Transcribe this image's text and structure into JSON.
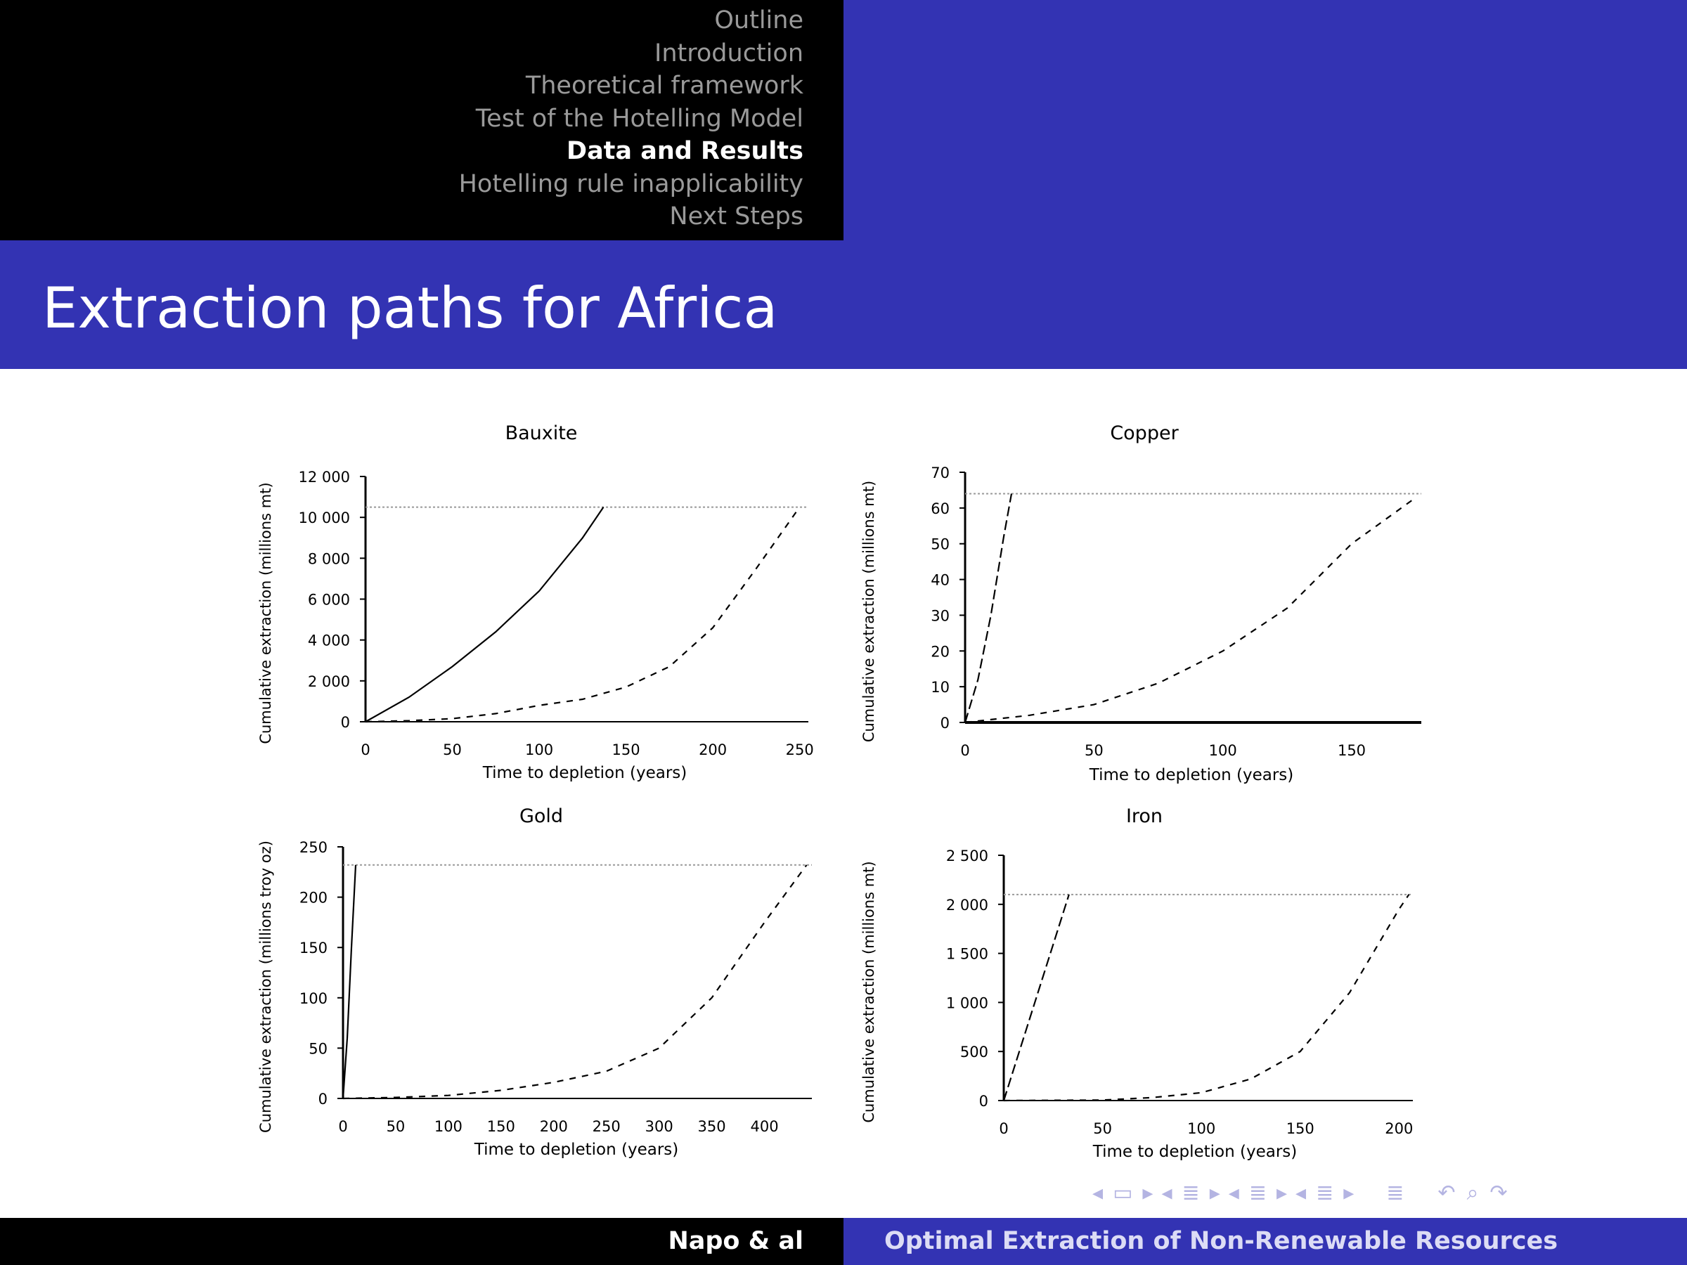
{
  "header": {
    "nav_items": [
      {
        "label": "Outline",
        "active": false
      },
      {
        "label": "Introduction",
        "active": false
      },
      {
        "label": "Theoretical framework",
        "active": false
      },
      {
        "label": "Test of the Hotelling Model",
        "active": false
      },
      {
        "label": "Data and Results",
        "active": true
      },
      {
        "label": "Hotelling rule inapplicability",
        "active": false
      },
      {
        "label": "Next Steps",
        "active": false
      }
    ]
  },
  "slide": {
    "title": "Extraction paths for Africa"
  },
  "footer": {
    "author": "Napo & al",
    "talk_title": "Optimal Extraction of Non-Renewable Resources"
  },
  "colors": {
    "header_black": "#000000",
    "theme_blue": "#3333b3",
    "nav_inactive": "#9a9a9a",
    "nav_icons": "#b4b4e2"
  },
  "beamer_nav_icons": [
    "arrow-left-icon",
    "frame-icon",
    "arrow-right-icon",
    "arrow-left-icon",
    "subsection-icon",
    "arrow-right-icon",
    "arrow-left-icon",
    "section-icon",
    "arrow-right-icon",
    "arrow-left-icon",
    "presentation-icon",
    "arrow-right-icon",
    "appendix-icon",
    "undo-icon",
    "search-icon",
    "redo-icon"
  ],
  "chart_data": [
    {
      "type": "line",
      "title": "Bauxite",
      "xlabel": "Time to depletion (years)",
      "ylabel": "Cumulative extraction (millions mt)",
      "xlim": [
        0,
        255
      ],
      "ylim": [
        0,
        12000
      ],
      "xticks": [
        0,
        50,
        100,
        150,
        200,
        250
      ],
      "xtick_labels": [
        "0",
        "50",
        "100",
        "150",
        "200",
        "250"
      ],
      "yticks": [
        0,
        2000,
        4000,
        6000,
        8000,
        10000,
        12000
      ],
      "ytick_labels": [
        "0",
        "2 000",
        "4 000",
        "6 000",
        "8 000",
        "10 000",
        "12 000"
      ],
      "reserve": 10500,
      "series": [
        {
          "style": "solid",
          "x": [
            0,
            25,
            50,
            75,
            100,
            125,
            137
          ],
          "y": [
            0,
            1200,
            2700,
            4400,
            6400,
            9000,
            10500
          ]
        },
        {
          "style": "dashed",
          "x": [
            0,
            25,
            50,
            75,
            100,
            125,
            150,
            175,
            200,
            225,
            250
          ],
          "y": [
            0,
            50,
            150,
            400,
            800,
            1100,
            1700,
            2700,
            4600,
            7500,
            10500
          ]
        }
      ]
    },
    {
      "type": "line",
      "title": "Copper",
      "xlabel": "Time to depletion (years)",
      "ylabel": "Cumulative extraction (millions mt)",
      "xlim": [
        0,
        177
      ],
      "ylim": [
        0,
        70
      ],
      "xticks": [
        0,
        50,
        100,
        150
      ],
      "xtick_labels": [
        "0",
        "50",
        "100",
        "150"
      ],
      "yticks": [
        0,
        10,
        20,
        30,
        40,
        50,
        60,
        70
      ],
      "ytick_labels": [
        "0",
        "10",
        "20",
        "30",
        "40",
        "50",
        "60",
        "70"
      ],
      "reserve": 64,
      "series": [
        {
          "style": "dashed",
          "x": [
            0,
            5,
            10,
            15,
            18
          ],
          "y": [
            0,
            12,
            30,
            52,
            64
          ]
        },
        {
          "style": "dashed",
          "x": [
            0,
            25,
            50,
            75,
            100,
            125,
            150,
            175
          ],
          "y": [
            0,
            2,
            5,
            11,
            20,
            32,
            50,
            63
          ]
        }
      ]
    },
    {
      "type": "line",
      "title": "Gold",
      "xlabel": "Time to depletion (years)",
      "ylabel": "Cumulative extraction (millions troy oz)",
      "xlim": [
        0,
        445
      ],
      "ylim": [
        0,
        250
      ],
      "xticks": [
        0,
        50,
        100,
        150,
        200,
        250,
        300,
        350,
        400
      ],
      "xtick_labels": [
        "0",
        "50",
        "100",
        "150",
        "200",
        "250",
        "300",
        "350",
        "400"
      ],
      "yticks": [
        0,
        50,
        100,
        150,
        200,
        250
      ],
      "ytick_labels": [
        "0",
        "50",
        "100",
        "150",
        "200",
        "250"
      ],
      "reserve": 232,
      "series": [
        {
          "style": "solid",
          "x": [
            0,
            4,
            8,
            12
          ],
          "y": [
            0,
            60,
            150,
            232
          ]
        },
        {
          "style": "dashed",
          "x": [
            0,
            50,
            100,
            150,
            200,
            250,
            300,
            350,
            400,
            440
          ],
          "y": [
            0,
            1,
            3,
            8,
            16,
            27,
            50,
            100,
            175,
            232
          ]
        }
      ]
    },
    {
      "type": "line",
      "title": "Iron",
      "xlabel": "Time to depletion (years)",
      "ylabel": "Cumulative extraction (millions mt)",
      "xlim": [
        0,
        207
      ],
      "ylim": [
        0,
        2500
      ],
      "xticks": [
        0,
        50,
        100,
        150,
        200
      ],
      "xtick_labels": [
        "0",
        "50",
        "100",
        "150",
        "200"
      ],
      "yticks": [
        0,
        500,
        1000,
        1500,
        2000,
        2500
      ],
      "ytick_labels": [
        "0",
        "500",
        "1 000",
        "1 500",
        "2 000",
        "2 500"
      ],
      "reserve": 2100,
      "series": [
        {
          "style": "dashed",
          "x": [
            0,
            33
          ],
          "y": [
            0,
            2100
          ]
        },
        {
          "style": "dashed",
          "x": [
            0,
            50,
            75,
            100,
            125,
            150,
            175,
            200,
            205
          ],
          "y": [
            0,
            5,
            30,
            80,
            220,
            500,
            1100,
            1950,
            2100
          ]
        }
      ]
    }
  ]
}
